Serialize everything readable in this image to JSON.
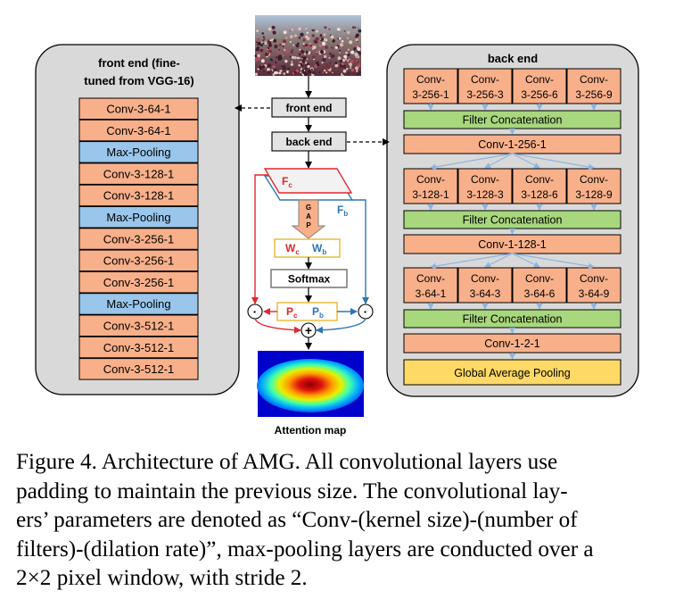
{
  "front_end_panel": {
    "title_line1": "front end (fine-",
    "title_line2": "tuned from VGG-16)",
    "layers": [
      {
        "label": "Conv-3-64-1",
        "kind": "conv"
      },
      {
        "label": "Conv-3-64-1",
        "kind": "conv"
      },
      {
        "label": "Max-Pooling",
        "kind": "pool"
      },
      {
        "label": "Conv-3-128-1",
        "kind": "conv"
      },
      {
        "label": "Conv-3-128-1",
        "kind": "conv"
      },
      {
        "label": "Max-Pooling",
        "kind": "pool"
      },
      {
        "label": "Conv-3-256-1",
        "kind": "conv"
      },
      {
        "label": "Conv-3-256-1",
        "kind": "conv"
      },
      {
        "label": "Conv-3-256-1",
        "kind": "conv"
      },
      {
        "label": "Max-Pooling",
        "kind": "pool"
      },
      {
        "label": "Conv-3-512-1",
        "kind": "conv"
      },
      {
        "label": "Conv-3-512-1",
        "kind": "conv"
      },
      {
        "label": "Conv-3-512-1",
        "kind": "conv"
      }
    ]
  },
  "back_end_panel": {
    "title": "back end",
    "stages": [
      {
        "branches": [
          [
            "Conv-",
            "3-256-1"
          ],
          [
            "Conv-",
            "3-256-3"
          ],
          [
            "Conv-",
            "3-256-6"
          ],
          [
            "Conv-",
            "3-256-9"
          ]
        ],
        "concat": "Filter Concatenation",
        "conv1": "Conv-1-256-1"
      },
      {
        "branches": [
          [
            "Conv-",
            "3-128-1"
          ],
          [
            "Conv-",
            "3-128-3"
          ],
          [
            "Conv-",
            "3-128-6"
          ],
          [
            "Conv-",
            "3-128-9"
          ]
        ],
        "concat": "Filter Concatenation",
        "conv1": "Conv-1-128-1"
      },
      {
        "branches": [
          [
            "Conv-",
            "3-64-1"
          ],
          [
            "Conv-",
            "3-64-3"
          ],
          [
            "Conv-",
            "3-64-6"
          ],
          [
            "Conv-",
            "3-64-9"
          ]
        ],
        "concat": "Filter Concatenation",
        "conv1": "Conv-1-2-1"
      }
    ],
    "final": "Global Average Pooling"
  },
  "center_flow": {
    "front_end": "front end",
    "back_end": "back end",
    "fc": "F",
    "fc_sub": "c",
    "fb": "F",
    "fb_sub": "b",
    "gap": [
      "G",
      "A",
      "P"
    ],
    "wc": "W",
    "wc_sub": "c",
    "wb": "W",
    "wb_sub": "b",
    "softmax": "Softmax",
    "pc": "P",
    "pc_sub": "c",
    "pb": "P",
    "pb_sub": "b",
    "multiply_symbol": "·",
    "plus_symbol": "+",
    "attention_label": "Attention map"
  },
  "colors": {
    "conv": "#F8B08A",
    "pool": "#99C6EA",
    "concat": "#A8D77D",
    "gap_box": "#FFD966",
    "panel_fill": "#D9D9D9",
    "center_box": "#E3E3E3",
    "red": "#E0282E",
    "blue": "#2E75B6"
  },
  "caption": {
    "lines": [
      "Figure 4. Architecture of AMG. All convolutional layers use",
      "padding to maintain the previous size.  The convolutional lay-",
      "ers’ parameters are denoted as “Conv-(kernel size)-(number of",
      "filters)-(dilation rate)”, max-pooling layers are conducted over a",
      "2×2 pixel window, with stride 2."
    ]
  }
}
